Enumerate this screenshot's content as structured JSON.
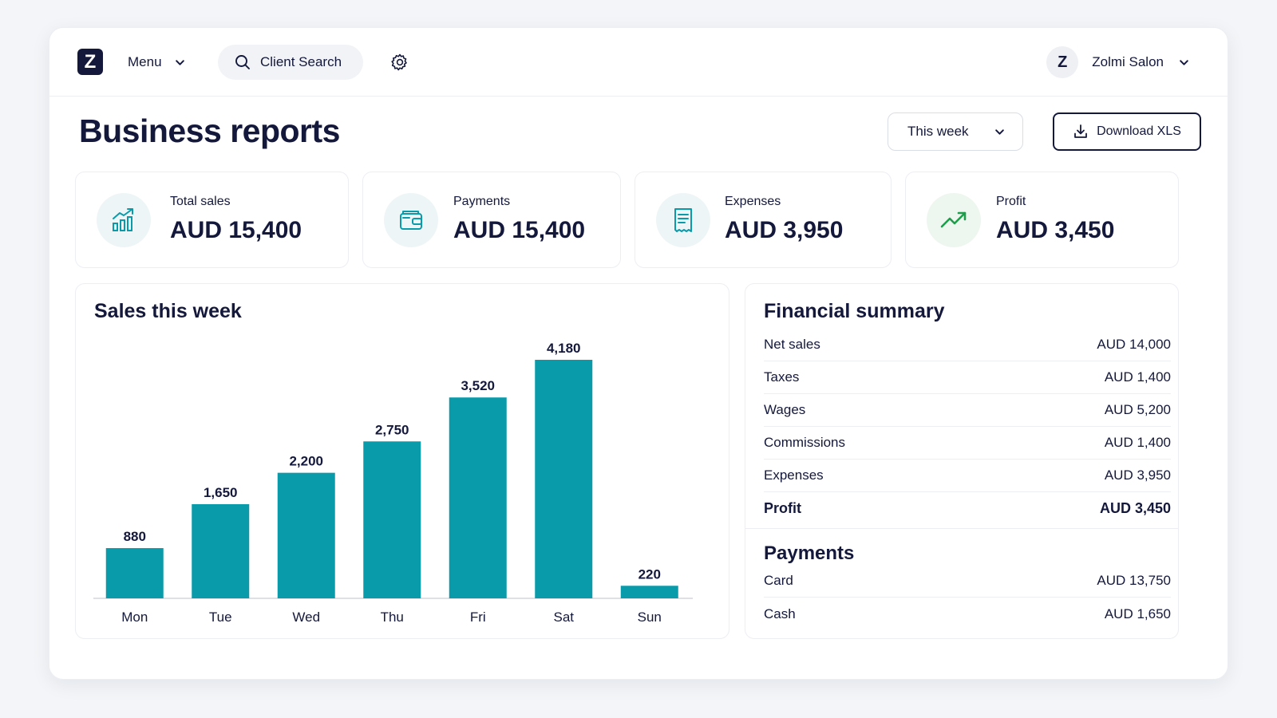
{
  "topbar": {
    "logo_letter": "Z",
    "menu_label": "Menu",
    "search_label": "Client Search",
    "avatar_letter": "Z",
    "account_name": "Zolmi Salon"
  },
  "header": {
    "title": "Business reports",
    "period": "This week",
    "download_label": "Download XLS"
  },
  "kpis": [
    {
      "label": "Total sales",
      "value": "AUD 15,400",
      "icon": "bar-chart-up-icon"
    },
    {
      "label": "Payments",
      "value": "AUD 15,400",
      "icon": "wallet-icon"
    },
    {
      "label": "Expenses",
      "value": "AUD 3,950",
      "icon": "receipt-icon"
    },
    {
      "label": "Profit",
      "value": "AUD 3,450",
      "icon": "trend-up-icon"
    }
  ],
  "sales_panel": {
    "title": "Sales this week"
  },
  "chart_data": {
    "type": "bar",
    "title": "Sales this week",
    "categories": [
      "Mon",
      "Tue",
      "Wed",
      "Thu",
      "Fri",
      "Sat",
      "Sun"
    ],
    "values": [
      880,
      1650,
      2200,
      2750,
      3520,
      4180,
      220
    ],
    "value_labels": [
      "880",
      "1,650",
      "2,200",
      "2,750",
      "3,520",
      "4,180",
      "220"
    ],
    "ylim": [
      0,
      4180
    ],
    "grid": false,
    "bar_color": "#0a9bab"
  },
  "financial_summary": {
    "title": "Financial summary",
    "rows": [
      {
        "label": "Net sales",
        "value": "AUD 14,000"
      },
      {
        "label": "Taxes",
        "value": "AUD 1,400"
      },
      {
        "label": "Wages",
        "value": "AUD 5,200"
      },
      {
        "label": "Commissions",
        "value": "AUD 1,400"
      },
      {
        "label": "Expenses",
        "value": "AUD 3,950"
      },
      {
        "label": "Profit",
        "value": "AUD 3,450"
      }
    ],
    "payments_title": "Payments",
    "payments": [
      {
        "label": "Card",
        "value": "AUD 13,750"
      },
      {
        "label": "Cash",
        "value": "AUD 1,650"
      }
    ]
  },
  "colors": {
    "navy": "#14183b",
    "teal": "#0a9bab",
    "green": "#1f9d4c"
  }
}
